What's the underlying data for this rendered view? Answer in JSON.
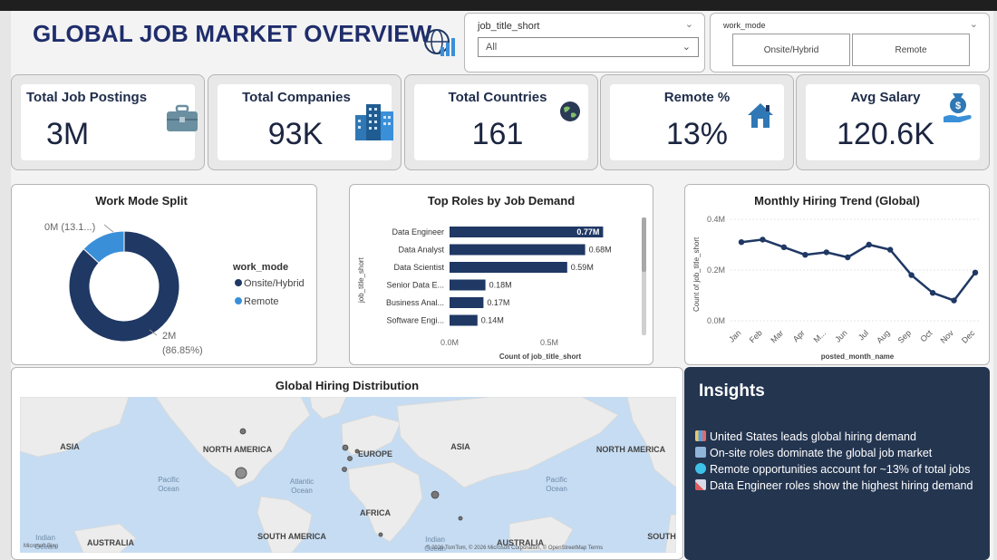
{
  "title": "GLOBAL JOB MARKET OVERVIEW",
  "slicers": {
    "job_title": {
      "label": "job_title_short",
      "selected": "All"
    },
    "work_mode": {
      "label": "work_mode",
      "options": [
        "Onsite/Hybrid",
        "Remote"
      ]
    }
  },
  "kpis": [
    {
      "title": "Total Job Postings",
      "value": "3M",
      "icon": "briefcase-icon"
    },
    {
      "title": "Total Companies",
      "value": "93K",
      "icon": "buildings-icon"
    },
    {
      "title": "Total Countries",
      "value": "161",
      "icon": "globe-icon"
    },
    {
      "title": "Remote %",
      "value": "13%",
      "icon": "house-icon"
    },
    {
      "title": "Avg Salary",
      "value": "120.6K",
      "icon": "money-hand-icon"
    }
  ],
  "work_mode_chart": {
    "title": "Work Mode Split",
    "legend_title": "work_mode",
    "legend": [
      "Onsite/Hybrid",
      "Remote"
    ],
    "label_small": "0M (13.1...)",
    "label_large_1": "2M",
    "label_large_2": "(86.85%)"
  },
  "roles_chart": {
    "title": "Top Roles by Job Demand",
    "xlabel": "Count of job_title_short",
    "ylabel": "job_title_short",
    "xticks": [
      "0.0M",
      "0.5M"
    ]
  },
  "trend_chart": {
    "title": "Monthly Hiring Trend (Global)",
    "xlabel": "posted_month_name",
    "ylabel": "Count of job_title_short",
    "yticks": [
      "0.4M",
      "0.2M",
      "0.0M"
    ]
  },
  "map": {
    "title": "Global Hiring Distribution",
    "labels": {
      "na1": "NORTH AMERICA",
      "na2": "NORTH AMERICA",
      "sa": "SOUTH AMERICA",
      "europe": "EUROPE",
      "africa": "AFRICA",
      "asia1": "ASIA",
      "asia2": "ASIA",
      "aus1": "AUSTRALIA",
      "aus2": "AUSTRALIA",
      "south": "SOUTH",
      "pacific1": "Pacific",
      "pacific1b": "Ocean",
      "atlantic": "Atlantic",
      "atlantic_b": "Ocean",
      "pacific2": "Pacific",
      "pacific2b": "Ocean",
      "indian": "Indian",
      "indian_b": "Ocean",
      "indian2": "Indian",
      "indian2b": "Ocean"
    },
    "attribution": "© 2026 TomTom, © 2026 Microsoft Corporation, © OpenStreetMap  Terms",
    "bing": "Microsoft Bing"
  },
  "insights": {
    "title": "Insights",
    "items": [
      "United States leads global hiring demand",
      "On-site roles dominate the global job market",
      "Remote opportunities account for ~13% of total jobs",
      "Data Engineer roles show the highest hiring demand"
    ]
  },
  "colors": {
    "navy": "#1f3864",
    "remote": "#3a8fd9",
    "insights_bg": "#243550"
  },
  "chart_data": [
    {
      "type": "pie",
      "title": "Work Mode Split",
      "categories": [
        "Onsite/Hybrid",
        "Remote"
      ],
      "values": [
        86.85,
        13.15
      ],
      "legend_placement": "right"
    },
    {
      "type": "bar",
      "title": "Top Roles by Job Demand",
      "categories": [
        "Data Engineer",
        "Data Analyst",
        "Data Scientist",
        "Senior Data E...",
        "Business Anal...",
        "Software Engi..."
      ],
      "values": [
        0.77,
        0.68,
        0.59,
        0.18,
        0.17,
        0.14
      ],
      "value_labels": [
        "0.77M",
        "0.68M",
        "0.59M",
        "0.18M",
        "0.17M",
        "0.14M"
      ],
      "xlim": [
        0,
        0.8
      ],
      "xlabel": "Count of job_title_short",
      "ylabel": "job_title_short"
    },
    {
      "type": "line",
      "title": "Monthly Hiring Trend (Global)",
      "x": [
        "Jan",
        "Feb",
        "Mar",
        "Apr",
        "M...",
        "Jun",
        "Jul",
        "Aug",
        "Sep",
        "Oct",
        "Nov",
        "Dec"
      ],
      "y": [
        0.31,
        0.32,
        0.29,
        0.26,
        0.27,
        0.25,
        0.3,
        0.28,
        0.18,
        0.11,
        0.08,
        0.19
      ],
      "ylim": [
        0,
        0.4
      ],
      "xlabel": "posted_month_name",
      "ylabel": "Count of job_title_short"
    }
  ]
}
